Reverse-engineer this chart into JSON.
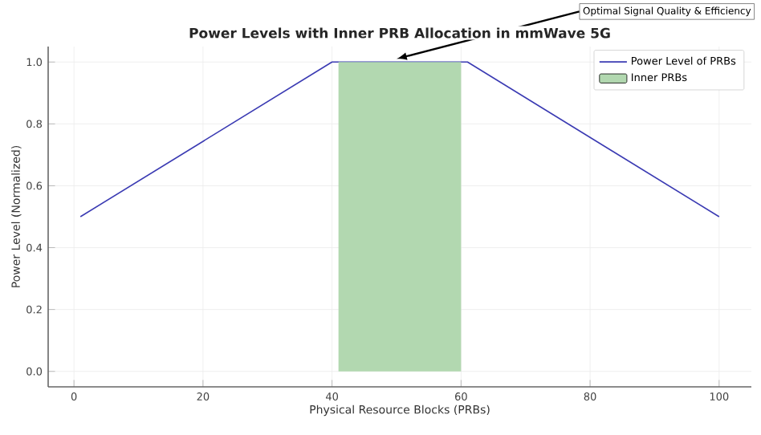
{
  "chart_data": {
    "type": "line",
    "title": "Power Levels with Inner PRB Allocation in mmWave 5G",
    "xlabel": "Physical Resource Blocks (PRBs)",
    "ylabel": "Power Level (Normalized)",
    "series": [
      {
        "name": "Power Level of PRBs",
        "color": "#3b3bb3",
        "x": [
          1,
          40,
          61,
          100
        ],
        "values": [
          0.5,
          1.0,
          1.0,
          0.5
        ]
      },
      {
        "name": "Inner PRBs",
        "type": "area",
        "color": "#b2d8b0",
        "x": [
          41,
          60
        ],
        "values": [
          1.0,
          1.0
        ]
      }
    ],
    "xlim": [
      -4,
      105
    ],
    "ylim": [
      -0.05,
      1.05
    ],
    "xticks": [
      0,
      20,
      40,
      60,
      80,
      100
    ],
    "yticks": [
      {
        "value": 0,
        "label": "0.0"
      },
      {
        "value": 0.2,
        "label": "0.2"
      },
      {
        "value": 0.4,
        "label": "0.4"
      },
      {
        "value": 0.6,
        "label": "0.6"
      },
      {
        "value": 0.8,
        "label": "0.8"
      },
      {
        "value": 1.0,
        "label": "1.0"
      }
    ],
    "grid": true,
    "legend": "top right",
    "annotations": [
      {
        "text": "Optimal Signal Quality & Efficiency",
        "x": 50,
        "y": 1.0
      }
    ]
  }
}
